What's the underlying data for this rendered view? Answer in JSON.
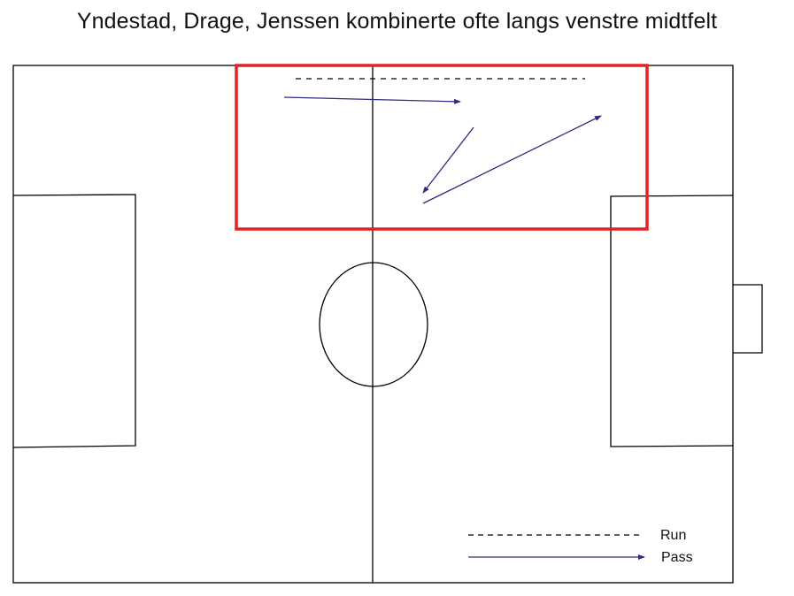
{
  "title": "Yndestad, Drage, Jenssen kombinerte ofte langs venstre midtfelt",
  "legend": {
    "run_label": "Run",
    "pass_label": "Pass"
  },
  "colors": {
    "pitch_lines": "#000000",
    "pass": "#2b2b7f",
    "run": "#000000",
    "highlight": "#e32222"
  },
  "icons": {
    "run": "dashed-line",
    "pass": "arrow-line"
  }
}
